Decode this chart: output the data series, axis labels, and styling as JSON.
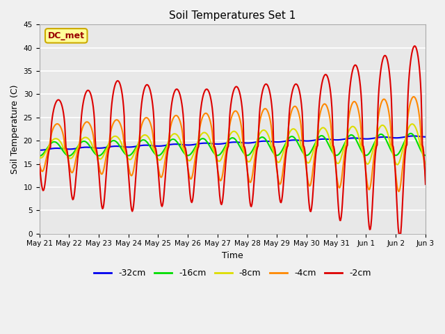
{
  "title": "Soil Temperatures Set 1",
  "xlabel": "Time",
  "ylabel": "Soil Temperature (C)",
  "ylim": [
    0,
    45
  ],
  "yticks": [
    0,
    5,
    10,
    15,
    20,
    25,
    30,
    35,
    40,
    45
  ],
  "xtick_labels": [
    "May 21",
    "May 22",
    "May 23",
    "May 24",
    "May 25",
    "May 26",
    "May 27",
    "May 28",
    "May 29",
    "May 30",
    "May 31",
    "Jun 1",
    "Jun 2",
    "Jun 3"
  ],
  "background_color": "#f0f0f0",
  "plot_bg_color": "#e8e8e8",
  "grid_color": "#ffffff",
  "annotation_text": "DC_met",
  "annotation_bg": "#ffff99",
  "annotation_border": "#ccaa00",
  "line_colors": {
    "-32cm": "#0000ee",
    "-16cm": "#00dd00",
    "-8cm": "#dddd00",
    "-4cm": "#ff8800",
    "-2cm": "#dd0000"
  },
  "line_width": 1.5,
  "figsize": [
    6.4,
    4.8
  ],
  "dpi": 100
}
